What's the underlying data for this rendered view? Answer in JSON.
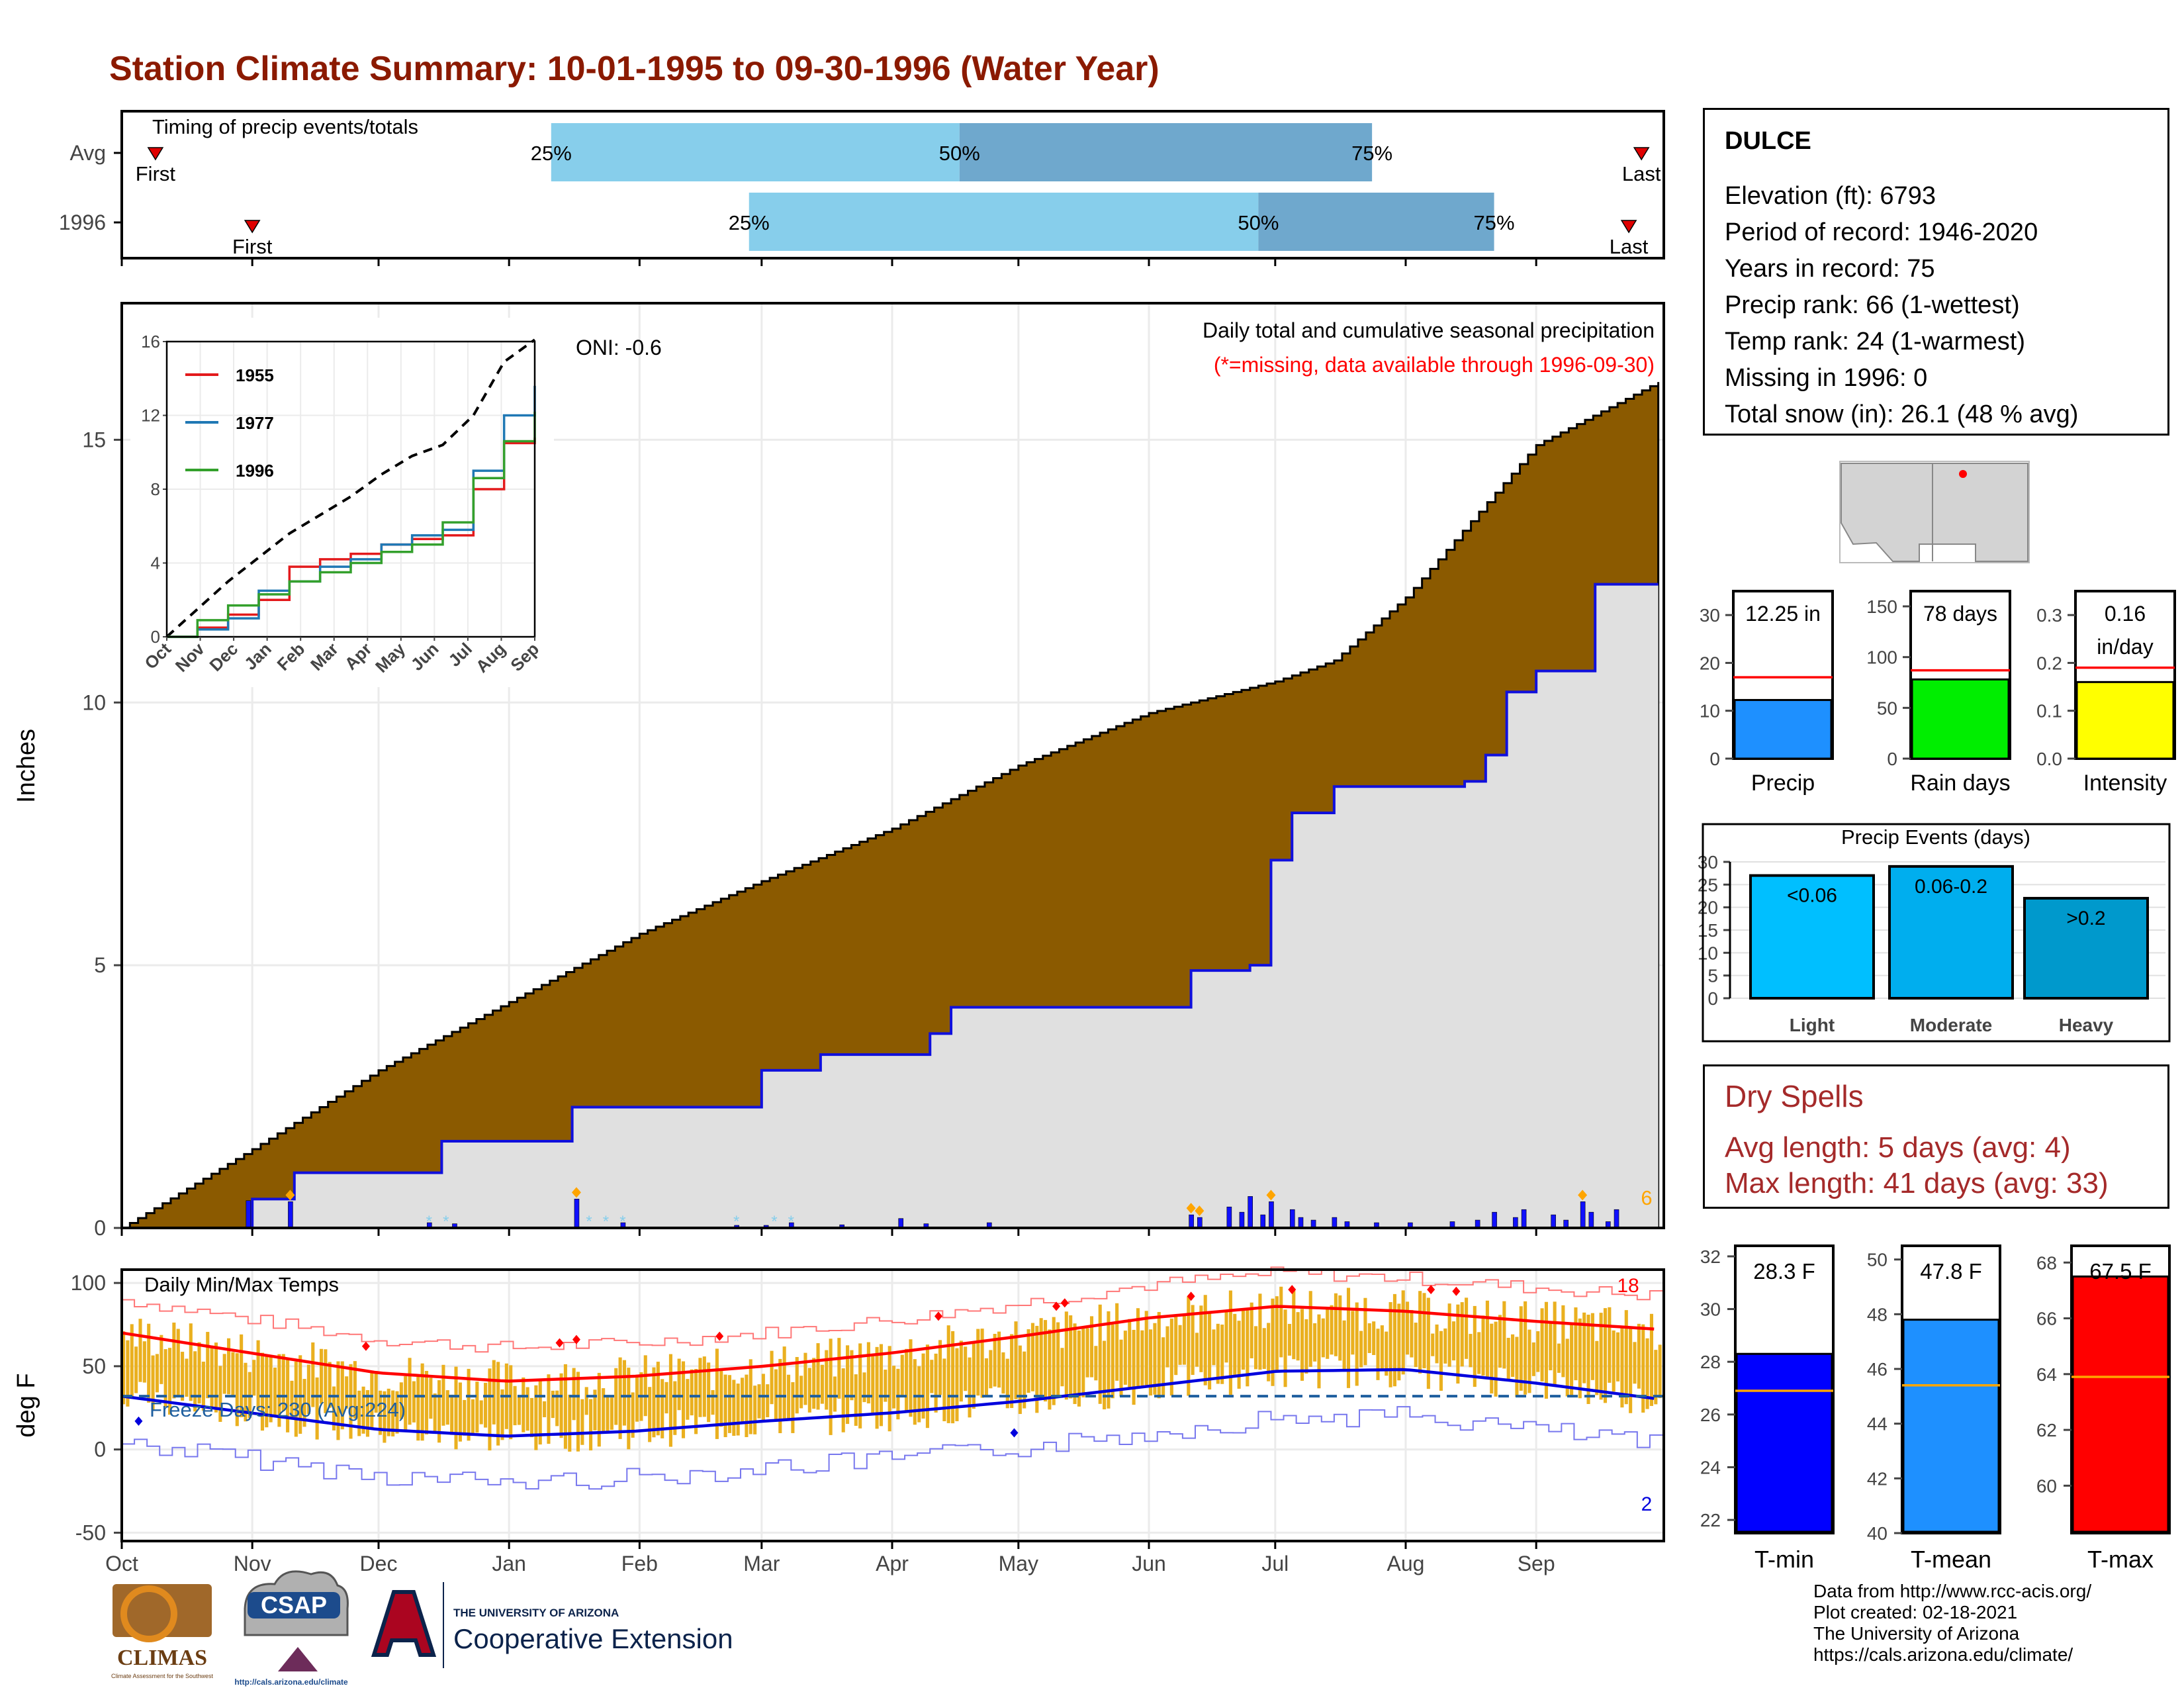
{
  "title": "Station Climate Summary: 10-01-1995 to 09-30-1996 (Water Year)",
  "timing": {
    "label": "Timing of precip events/totals",
    "rows": [
      {
        "name": "Avg",
        "first_label": "First",
        "last_label": "Last",
        "p25": "25%",
        "p50": "50%",
        "p75": "75%",
        "first": "1995-10-09",
        "q25": "1996-01-11",
        "q50": "1996-04-17",
        "q75": "1996-07-24",
        "last": "1996-09-26"
      },
      {
        "name": "1996",
        "first_label": "First",
        "last_label": "Last",
        "p25": "25%",
        "p50": "50%",
        "p75": "75%",
        "first": "1995-11-01",
        "q25": "1996-02-27",
        "q50": "1996-06-27",
        "q75": "1996-08-22",
        "last": "1996-09-23"
      }
    ],
    "colors": {
      "light": "#87ceeb",
      "dark": "#6fa8cd",
      "marker": "#e00000"
    }
  },
  "precip_panel": {
    "ylabel": "Inches",
    "yticks": [
      0,
      5,
      10,
      15
    ],
    "ylim": [
      0,
      17.6
    ],
    "caption": "Daily total and cumulative seasonal precipitation",
    "missing_note": "(*=missing, data available through 1996-09-30)",
    "oni": "ONI: -0.6",
    "right_count": "6",
    "avg_cumulative": {
      "dates": [
        "1995-10-01",
        "1995-11-01",
        "1995-12-01",
        "1996-01-01",
        "1996-02-01",
        "1996-03-01",
        "1996-04-01",
        "1996-05-01",
        "1996-06-01",
        "1996-07-01",
        "1996-07-15",
        "1996-08-01",
        "1996-09-01",
        "1996-09-30"
      ],
      "values": [
        0,
        1.5,
        3.0,
        4.3,
        5.6,
        6.6,
        7.6,
        8.8,
        9.8,
        10.4,
        10.8,
        12.0,
        14.9,
        16.1
      ]
    },
    "observed_cumulative": {
      "dates": [
        "1995-10-01",
        "1995-10-31",
        "1995-11-01",
        "1995-11-10",
        "1995-11-11",
        "1995-12-15",
        "1995-12-16",
        "1996-01-15",
        "1996-01-16",
        "1996-02-20",
        "1996-03-01",
        "1996-03-15",
        "1996-04-10",
        "1996-04-15",
        "1996-06-10",
        "1996-06-11",
        "1996-06-25",
        "1996-06-30",
        "1996-07-05",
        "1996-07-15",
        "1996-08-15",
        "1996-08-20",
        "1996-08-25",
        "1996-09-01",
        "1996-09-10",
        "1996-09-15",
        "1996-09-30"
      ],
      "values": [
        0,
        0,
        0.55,
        0.55,
        1.05,
        1.05,
        1.65,
        1.65,
        2.3,
        2.3,
        3.0,
        3.3,
        3.7,
        4.2,
        4.2,
        4.9,
        5.0,
        7.0,
        7.9,
        8.4,
        8.5,
        9.0,
        10.2,
        10.6,
        10.6,
        12.25,
        12.25
      ]
    },
    "daily_events": {
      "dates": [
        "1995-10-31",
        "1995-11-10",
        "1995-12-13",
        "1995-12-19",
        "1996-01-17",
        "1996-01-28",
        "1996-02-24",
        "1996-03-02",
        "1996-03-08",
        "1996-03-20",
        "1996-04-03",
        "1996-04-09",
        "1996-04-24",
        "1996-06-11",
        "1996-06-13",
        "1996-06-20",
        "1996-06-23",
        "1996-06-25",
        "1996-06-28",
        "1996-06-30",
        "1996-07-05",
        "1996-07-07",
        "1996-07-10",
        "1996-07-15",
        "1996-07-18",
        "1996-07-25",
        "1996-08-02",
        "1996-08-12",
        "1996-08-18",
        "1996-08-22",
        "1996-08-27",
        "1996-08-29",
        "1996-09-05",
        "1996-09-08",
        "1996-09-12",
        "1996-09-14",
        "1996-09-18",
        "1996-09-20"
      ],
      "values": [
        0.52,
        0.5,
        0.1,
        0.08,
        0.55,
        0.1,
        0.05,
        0.05,
        0.1,
        0.06,
        0.18,
        0.08,
        0.1,
        0.25,
        0.2,
        0.4,
        0.3,
        0.6,
        0.25,
        0.5,
        0.35,
        0.2,
        0.15,
        0.2,
        0.12,
        0.1,
        0.1,
        0.12,
        0.15,
        0.3,
        0.2,
        0.35,
        0.25,
        0.15,
        0.5,
        0.3,
        0.12,
        0.35
      ]
    },
    "colors": {
      "avg_fill": "#8b5a00",
      "obs_fill": "#e0e0e0",
      "obs_line": "#1010dd",
      "daily": "#1010ff",
      "snow": "#87ceeb",
      "marker": "#ffa500"
    }
  },
  "inset": {
    "yticks": [
      0,
      4,
      8,
      12,
      16
    ],
    "xticks": [
      "Oct",
      "Nov",
      "Dec",
      "Jan",
      "Feb",
      "Mar",
      "Apr",
      "May",
      "Jun",
      "Jul",
      "Aug",
      "Sep"
    ],
    "series": [
      {
        "name": "1955",
        "color": "#e31a1c",
        "values": [
          0,
          0.5,
          1.2,
          2.0,
          3.8,
          4.2,
          4.5,
          5.0,
          5.3,
          5.5,
          8.0,
          10.5,
          10.8
        ]
      },
      {
        "name": "1977",
        "color": "#1f78b4",
        "values": [
          0,
          0.4,
          1.0,
          2.5,
          3.0,
          3.8,
          4.2,
          5.0,
          5.5,
          5.8,
          9.0,
          12.0,
          13.6
        ]
      },
      {
        "name": "1996",
        "color": "#33a02c",
        "values": [
          0,
          0.9,
          1.7,
          2.3,
          3.0,
          3.5,
          4.0,
          4.6,
          5.0,
          6.2,
          8.6,
          10.6,
          12.2
        ]
      }
    ],
    "avg_values": [
      0,
      1.5,
      3.0,
      4.3,
      5.6,
      6.6,
      7.6,
      8.8,
      9.8,
      10.4,
      12.0,
      14.9,
      16.1
    ]
  },
  "temp_panel": {
    "ylabel": "deg F",
    "title": "Daily Min/Max Temps",
    "yticks": [
      -50,
      0,
      50,
      100
    ],
    "ylim": [
      -55,
      108
    ],
    "freeze": "Freeze Days: 230 (Avg:224)",
    "freeze_level": 32,
    "count_max": "18",
    "count_min": "2",
    "xticks": [
      "Oct",
      "Nov",
      "Dec",
      "Jan",
      "Feb",
      "Mar",
      "Apr",
      "May",
      "Jun",
      "Jul",
      "Aug",
      "Sep"
    ],
    "avg_max": {
      "months": [
        0,
        1,
        2,
        3,
        4,
        5,
        6,
        7,
        8,
        9,
        10,
        11,
        12
      ],
      "values": [
        70,
        58,
        46,
        41,
        44,
        50,
        58,
        68,
        79,
        86,
        83,
        77,
        72
      ]
    },
    "avg_min": {
      "months": [
        0,
        1,
        2,
        3,
        4,
        5,
        6,
        7,
        8,
        9,
        10,
        11,
        12
      ],
      "values": [
        32,
        22,
        12,
        8,
        11,
        17,
        22,
        29,
        38,
        47,
        48,
        40,
        30
      ]
    },
    "colors": {
      "bars": "#eab01f",
      "avg_max": "#ff0000",
      "avg_min": "#0000dd",
      "rec_max": "#ff7777",
      "rec_min": "#7777ee",
      "freeze": "#1f5f9f"
    }
  },
  "map": {
    "fill": "#d3d3d3",
    "dot": "#ff0000"
  },
  "stats_bars": [
    {
      "label": "Precip",
      "value_label": "12.25 in",
      "value": 12.25,
      "avg": 17,
      "ymax": 35,
      "ticks": [
        0,
        10,
        20,
        30
      ],
      "color": "#1e90ff"
    },
    {
      "label": "Rain days",
      "value_label": "78 days",
      "value": 78,
      "avg": 87,
      "ymax": 165,
      "ticks": [
        0,
        50,
        100,
        150
      ],
      "color": "#00ee00"
    },
    {
      "label": "Intensity",
      "value_label": "0.16",
      "value_label2": "in/day",
      "value": 0.16,
      "avg": 0.19,
      "ymax": 0.35,
      "ticks": [
        "0.0",
        "0.1",
        "0.2",
        "0.3"
      ],
      "color": "#ffff00"
    }
  ],
  "events": {
    "title": "Precip Events (days)",
    "categories": [
      "Light",
      "Moderate",
      "Heavy"
    ],
    "range_labels": [
      "<0.06",
      "0.06-0.2",
      ">0.2"
    ],
    "values": [
      27,
      29,
      22
    ],
    "ticks": [
      0,
      5,
      10,
      15,
      20,
      25,
      30
    ],
    "colors": [
      "#00bfff",
      "#00aeee",
      "#0099cc"
    ]
  },
  "temp_bars": [
    {
      "label": "T-min",
      "value_label": "28.3 F",
      "value": 28.3,
      "avg": 26.9,
      "ymin": 21.5,
      "ymax": 32.4,
      "ticks": [
        22,
        24,
        26,
        28,
        30,
        32
      ],
      "color": "#0000ff"
    },
    {
      "label": "T-mean",
      "value_label": "47.8 F",
      "value": 47.8,
      "avg": 45.4,
      "ymin": 40,
      "ymax": 50.5,
      "ticks": [
        40,
        42,
        44,
        46,
        48,
        50
      ],
      "color": "#1e90ff"
    },
    {
      "label": "T-max",
      "value_label": "67.5 F",
      "value": 67.5,
      "avg": 63.9,
      "ymin": 58.3,
      "ymax": 68.6,
      "ticks": [
        60,
        62,
        64,
        66,
        68
      ],
      "color": "#ff0000"
    }
  ],
  "station": {
    "name": "DULCE",
    "lines": [
      "Elevation (ft): 6793",
      "Period of record: 1946-2020",
      "Years in record: 75",
      "Precip rank: 66 (1-wettest)",
      "Temp rank: 24 (1-warmest)",
      "Missing in 1996: 0",
      "Total snow (in): 26.1 (48 % avg)"
    ]
  },
  "dry_spells": {
    "title": "Dry Spells",
    "avg": "Avg length: 5 days (avg: 4)",
    "max": "Max length: 41 days (avg: 33)"
  },
  "credits": [
    "Data from http://www.rcc-acis.org/",
    "Plot created: 02-18-2021",
    "The University of Arizona",
    "https://cals.arizona.edu/climate/"
  ],
  "logos": {
    "climas": "CLIMAS",
    "climas_sub": "Climate Assessment for the Southwest",
    "csap": "CSAP",
    "csap_url": "http://cals.arizona.edu/climate",
    "ua_top": "THE UNIVERSITY OF ARIZONA",
    "ua_main": "Cooperative Extension"
  }
}
